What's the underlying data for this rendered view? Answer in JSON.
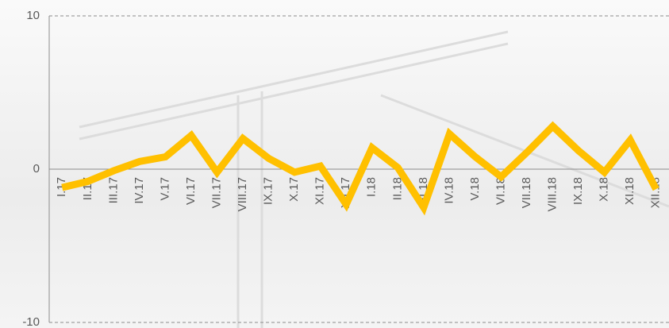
{
  "chart_data": {
    "type": "line",
    "categories": [
      "I.17",
      "II.17",
      "III.17",
      "IV.17",
      "V.17",
      "VI.17",
      "VII.17",
      "VIII.17",
      "IX.17",
      "X.17",
      "XI.17",
      "XII.17",
      "I.18",
      "II.18",
      "III.18",
      "IV.18",
      "V.18",
      "VI.18",
      "VII.18",
      "VIII.18",
      "IX.18",
      "X.18",
      "XI.18",
      "XII.18"
    ],
    "series": [
      {
        "color": "#FFC000",
        "values": [
          -1.2,
          -0.8,
          -0.1,
          0.5,
          0.8,
          2.2,
          -0.2,
          2.0,
          0.7,
          -0.2,
          0.2,
          -2.3,
          1.4,
          0.1,
          -2.5,
          2.3,
          0.8,
          -0.5,
          1.1,
          2.8,
          1.2,
          -0.2,
          1.9,
          -1.3
        ]
      }
    ],
    "ylim": [
      -10,
      10
    ],
    "yticks": [
      -10,
      0,
      10
    ],
    "grid": true
  }
}
